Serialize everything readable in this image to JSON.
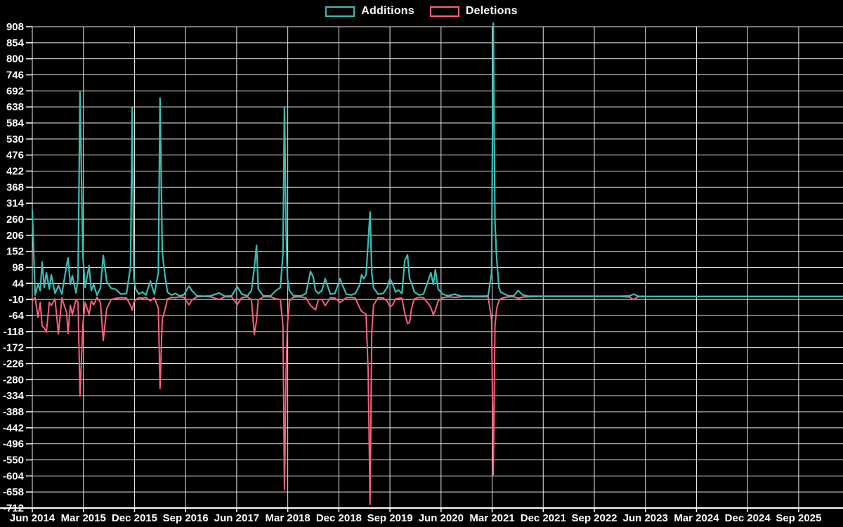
{
  "chart_data": {
    "type": "line",
    "title": "",
    "xlabel": "",
    "ylabel": "",
    "background_color": "#000000",
    "grid_color": "#ffffff",
    "text_color": "#ffffff",
    "legend_position": "top-center",
    "grid": true,
    "ylim": [
      -712,
      908
    ],
    "y_ticks": [
      908,
      854,
      800,
      746,
      692,
      638,
      584,
      530,
      476,
      422,
      368,
      314,
      260,
      206,
      152,
      98,
      44,
      -10,
      -64,
      -118,
      -172,
      -226,
      -280,
      -334,
      -388,
      -442,
      -496,
      -550,
      -604,
      -658,
      -712
    ],
    "x_tick_labels": [
      "Jun 2014",
      "Mar 2015",
      "Dec 2015",
      "Sep 2016",
      "Jun 2017",
      "Mar 2018",
      "Dec 2018",
      "Sep 2019",
      "Jun 2020",
      "Mar 2021",
      "Dec 2021",
      "Sep 2022",
      "Jun 2023",
      "Mar 2024",
      "Dec 2024",
      "Sep 2025"
    ],
    "x_tick_step_months": 9,
    "x_unit": "months since Jun 2014",
    "series": [
      {
        "name": "Additions",
        "color": "#3bbcb6"
      },
      {
        "name": "Deletions",
        "color": "#fb607f"
      }
    ],
    "points_format": [
      "t_months",
      "additions",
      "deletions"
    ],
    "points": [
      [
        0,
        290,
        -15
      ],
      [
        0.5,
        5,
        -3
      ],
      [
        1,
        42,
        -70
      ],
      [
        1.4,
        20,
        -20
      ],
      [
        1.73,
        116,
        -100
      ],
      [
        2.1,
        30,
        -106
      ],
      [
        2.47,
        80,
        -120
      ],
      [
        3,
        25,
        -20
      ],
      [
        3.35,
        73,
        -30
      ],
      [
        4,
        10,
        -8
      ],
      [
        4.6,
        37,
        -126
      ],
      [
        5.2,
        8,
        -5
      ],
      [
        6.05,
        105,
        -55
      ],
      [
        6.3,
        130,
        -125
      ],
      [
        6.7,
        40,
        -30
      ],
      [
        7.05,
        70,
        -60
      ],
      [
        7.7,
        12,
        -10
      ],
      [
        8.05,
        60,
        -20
      ],
      [
        8.4,
        690,
        -335
      ],
      [
        8.9,
        140,
        -95
      ],
      [
        9.3,
        30,
        -20
      ],
      [
        10,
        104,
        -60
      ],
      [
        10.4,
        20,
        -15
      ],
      [
        10.8,
        40,
        -28
      ],
      [
        11.4,
        4,
        -3
      ],
      [
        12,
        30,
        -20
      ],
      [
        12.5,
        138,
        -148
      ],
      [
        13.1,
        50,
        -40
      ],
      [
        13.9,
        28,
        -10
      ],
      [
        14.7,
        24,
        -6
      ],
      [
        15.6,
        8,
        -4
      ],
      [
        16.6,
        10,
        -5
      ],
      [
        17.3,
        100,
        -30
      ],
      [
        17.6,
        635,
        -46
      ],
      [
        17.9,
        60,
        -20
      ],
      [
        18.2,
        25,
        -10
      ],
      [
        18.8,
        8,
        -4
      ],
      [
        19.4,
        15,
        -6
      ],
      [
        20,
        5,
        -3
      ],
      [
        20.8,
        52,
        -15
      ],
      [
        21.5,
        8,
        -4
      ],
      [
        22.2,
        80,
        -40
      ],
      [
        22.5,
        668,
        -310
      ],
      [
        22.9,
        150,
        -75
      ],
      [
        23.3,
        80,
        -50
      ],
      [
        23.8,
        15,
        -8
      ],
      [
        24.5,
        5,
        -3
      ],
      [
        25.2,
        10,
        -4
      ],
      [
        26,
        2,
        -1
      ],
      [
        26.7,
        6,
        -3
      ],
      [
        27.6,
        35,
        -28
      ],
      [
        28.1,
        20,
        -12
      ],
      [
        29,
        2,
        -1
      ],
      [
        30.2,
        1,
        0
      ],
      [
        31.4,
        2,
        -1
      ],
      [
        32.9,
        12,
        -10
      ],
      [
        33.9,
        1,
        -1
      ],
      [
        35.1,
        2,
        -1
      ],
      [
        36.1,
        33,
        -27
      ],
      [
        36.9,
        8,
        -4
      ],
      [
        37.9,
        2,
        -1
      ],
      [
        38.6,
        20,
        -10
      ],
      [
        39.1,
        96,
        -128
      ],
      [
        39.5,
        172,
        -80
      ],
      [
        39.8,
        25,
        -12
      ],
      [
        40.7,
        2,
        -1
      ],
      [
        42,
        2,
        -1
      ],
      [
        42.9,
        20,
        -8
      ],
      [
        43.7,
        30,
        -10
      ],
      [
        44.15,
        143,
        -100
      ],
      [
        44.42,
        638,
        -650
      ],
      [
        44.7,
        230,
        -257
      ],
      [
        44.95,
        60,
        -95
      ],
      [
        45.3,
        20,
        -15
      ],
      [
        46,
        3,
        -2
      ],
      [
        47.3,
        2,
        -1
      ],
      [
        48.2,
        10,
        -5
      ],
      [
        49,
        84,
        -30
      ],
      [
        49.5,
        64,
        -39
      ],
      [
        49.9,
        20,
        -45
      ],
      [
        50.4,
        10,
        -10
      ],
      [
        51,
        20,
        -10
      ],
      [
        51.6,
        60,
        -31
      ],
      [
        52.5,
        8,
        -4
      ],
      [
        53.3,
        10,
        -5
      ],
      [
        54.2,
        60,
        -20
      ],
      [
        54.6,
        40,
        -15
      ],
      [
        55.3,
        8,
        -4
      ],
      [
        56.2,
        5,
        -3
      ],
      [
        56.9,
        10,
        -5
      ],
      [
        57.7,
        40,
        -40
      ],
      [
        58,
        73,
        -50
      ],
      [
        58.4,
        60,
        -55
      ],
      [
        58.8,
        73,
        -60
      ],
      [
        59.15,
        180,
        -245
      ],
      [
        59.5,
        285,
        -700
      ],
      [
        59.8,
        80,
        -118
      ],
      [
        60.1,
        30,
        -30
      ],
      [
        60.9,
        8,
        -4
      ],
      [
        61.8,
        10,
        -5
      ],
      [
        62.5,
        30,
        -15
      ],
      [
        63,
        60,
        -35
      ],
      [
        63.4,
        45,
        -30
      ],
      [
        64,
        15,
        -8
      ],
      [
        64.5,
        22,
        -6
      ],
      [
        65.1,
        10,
        -5
      ],
      [
        65.6,
        120,
        -55
      ],
      [
        66.1,
        140,
        -91
      ],
      [
        66.45,
        60,
        -88
      ],
      [
        66.8,
        45,
        -40
      ],
      [
        67.3,
        15,
        -8
      ],
      [
        68.1,
        5,
        -3
      ],
      [
        68.9,
        8,
        -4
      ],
      [
        69.8,
        56,
        -25
      ],
      [
        70.2,
        80,
        -37
      ],
      [
        70.65,
        40,
        -62
      ],
      [
        71,
        90,
        -46
      ],
      [
        71.5,
        25,
        -15
      ],
      [
        72.3,
        8,
        -4
      ],
      [
        73.3,
        2,
        -1
      ],
      [
        74.4,
        8,
        -3
      ],
      [
        75.5,
        1,
        -1
      ],
      [
        76.7,
        1,
        0
      ],
      [
        77.9,
        1,
        -1
      ],
      [
        79.2,
        1,
        -1
      ],
      [
        80.3,
        2,
        -1
      ],
      [
        80.9,
        78,
        -78
      ],
      [
        81.2,
        920,
        -600
      ],
      [
        81.5,
        250,
        -100
      ],
      [
        81.8,
        128,
        -40
      ],
      [
        82.2,
        30,
        -15
      ],
      [
        82.5,
        15,
        -8
      ],
      [
        83,
        10,
        -4
      ],
      [
        83.9,
        2,
        -1
      ],
      [
        84.8,
        2,
        -1
      ],
      [
        85.6,
        20,
        -6
      ],
      [
        86.4,
        5,
        -2
      ],
      [
        87.4,
        1,
        -1
      ],
      [
        89,
        1,
        0
      ],
      [
        91,
        1,
        0
      ],
      [
        93.5,
        1,
        0
      ],
      [
        96,
        1,
        0
      ],
      [
        98.5,
        1,
        0
      ],
      [
        101,
        1,
        0
      ],
      [
        103.5,
        1,
        0
      ],
      [
        105.2,
        2,
        -2
      ],
      [
        105.9,
        8,
        -10
      ],
      [
        106.7,
        1,
        -1
      ],
      [
        108.8,
        0,
        0
      ],
      [
        112,
        0,
        0
      ],
      [
        116,
        0,
        0
      ],
      [
        120,
        0,
        0
      ],
      [
        124,
        0,
        0
      ],
      [
        128,
        0,
        0
      ],
      [
        132,
        0,
        0
      ],
      [
        136,
        0,
        0
      ],
      [
        140,
        0,
        0
      ],
      [
        142.8,
        0,
        0
      ]
    ]
  }
}
